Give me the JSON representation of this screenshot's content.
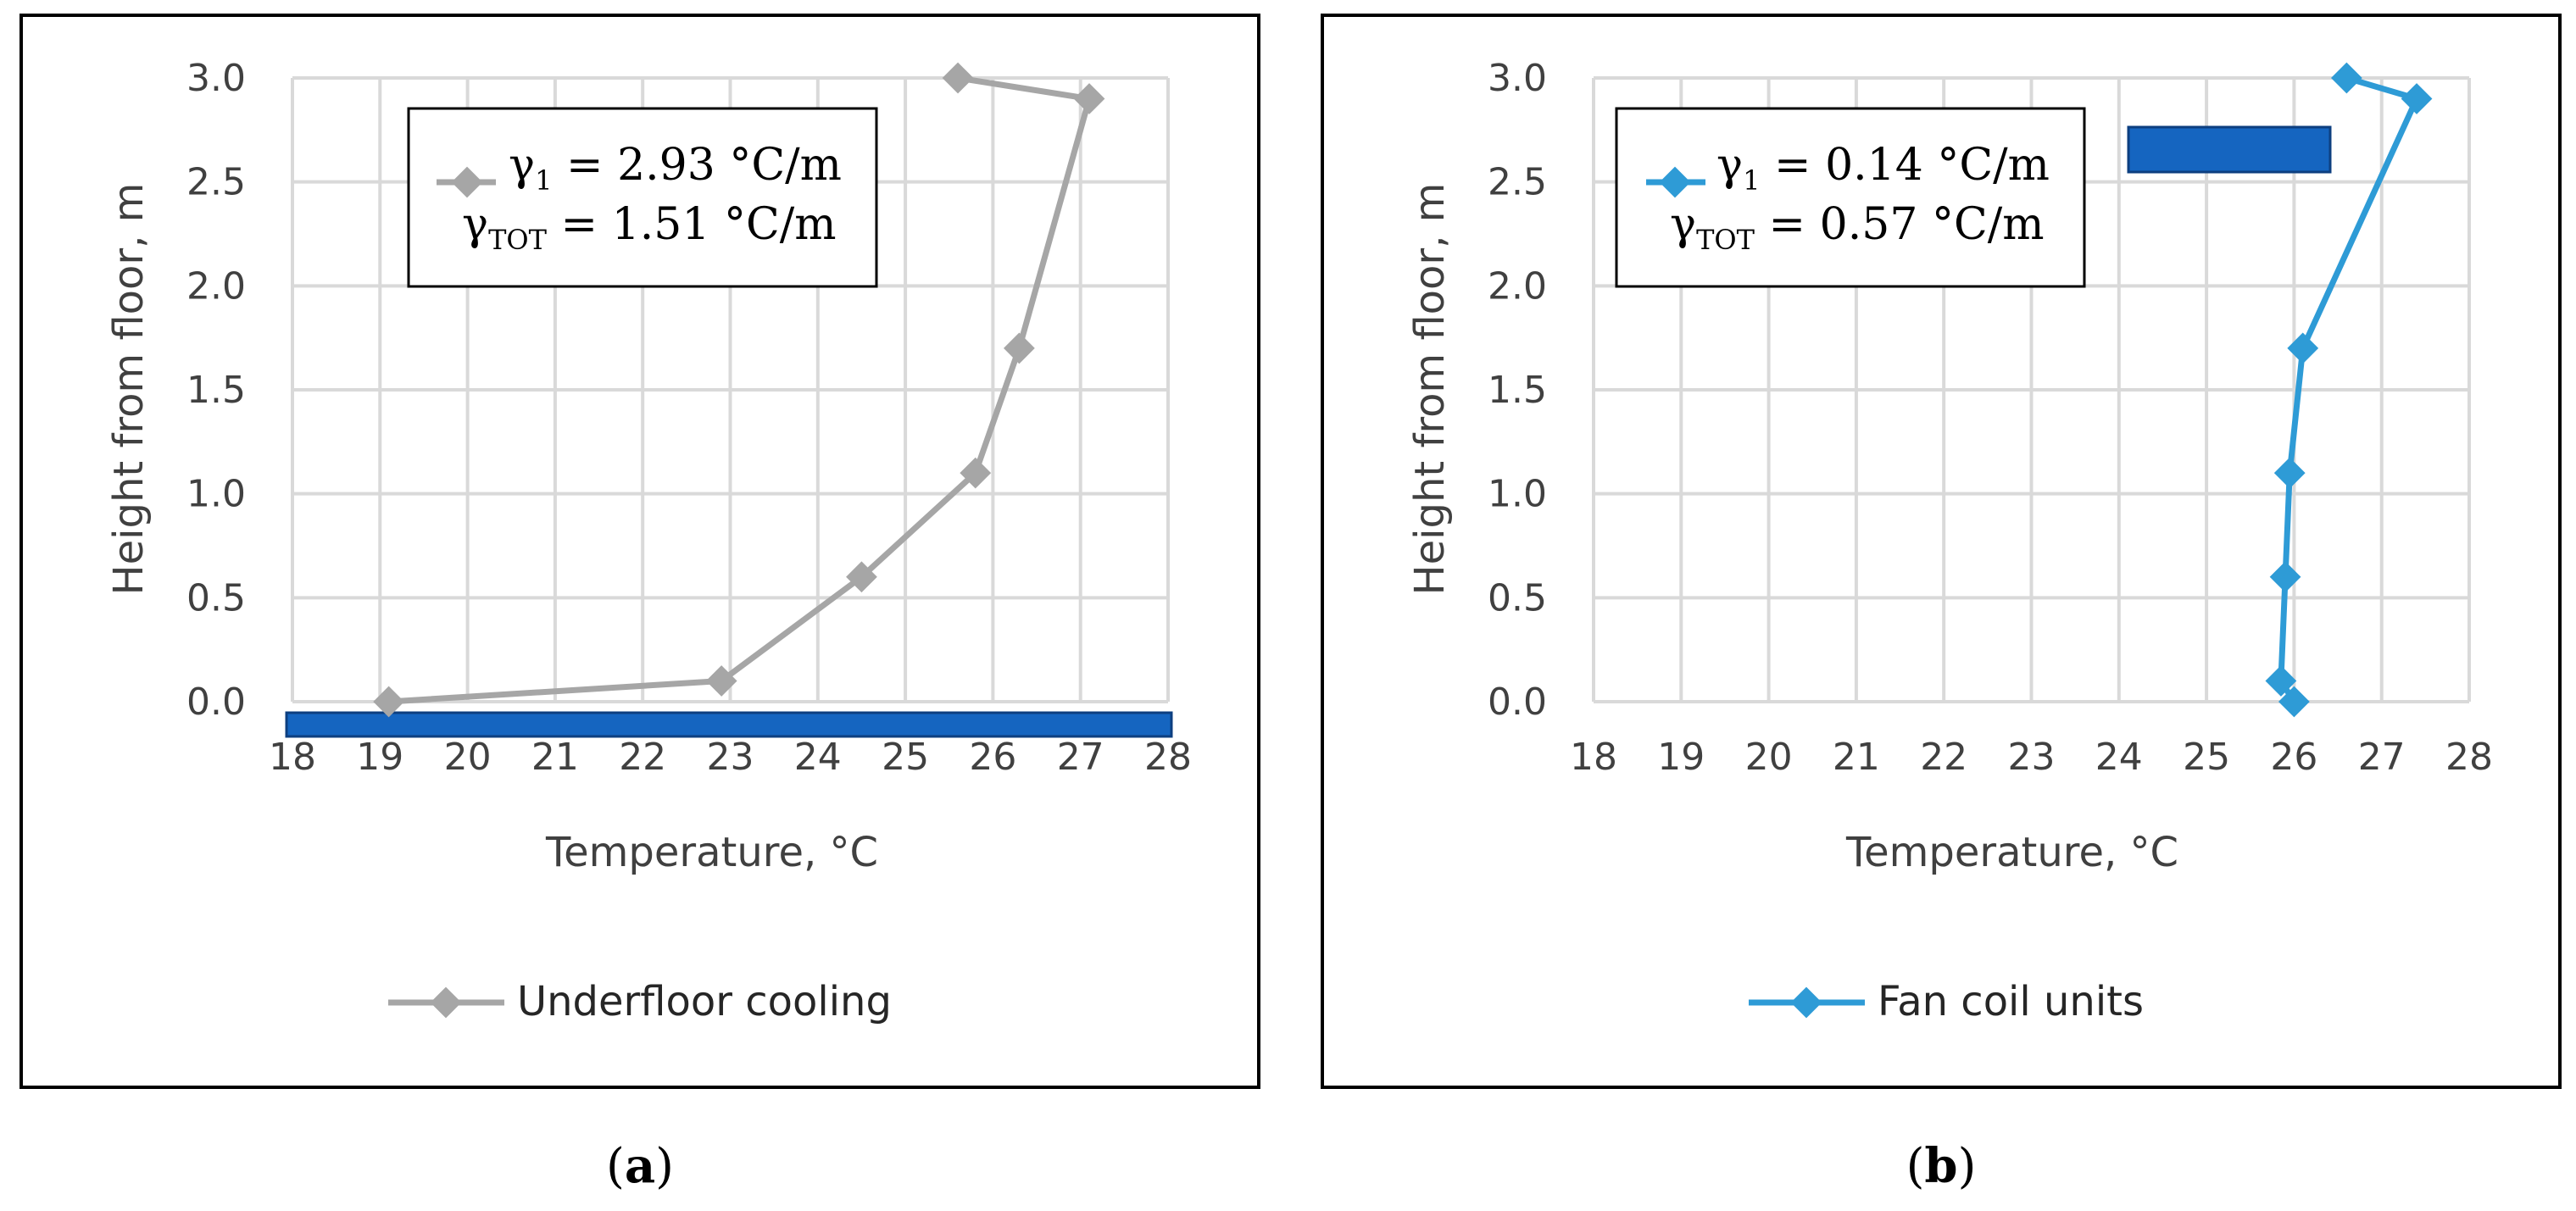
{
  "chart_data": [
    {
      "id": "a",
      "type": "line",
      "caption": "a",
      "xlabel": "Temperature, °C",
      "ylabel": "Height from floor, m",
      "xlim": [
        18,
        28
      ],
      "ylim": [
        0,
        3
      ],
      "xticks": [
        "18",
        "19",
        "20",
        "21",
        "22",
        "23",
        "24",
        "25",
        "26",
        "27",
        "28"
      ],
      "yticks": [
        "0.0",
        "0.5",
        "1.0",
        "1.5",
        "2.0",
        "2.5",
        "3.0"
      ],
      "grid": true,
      "legend_position": "bottom",
      "color": "#A6A6A6",
      "series": [
        {
          "name": "Underfloor cooling",
          "x": [
            19.1,
            22.9,
            24.5,
            25.8,
            26.3,
            27.1,
            25.6
          ],
          "y": [
            0.0,
            0.1,
            0.6,
            1.1,
            1.7,
            2.9,
            3.0
          ]
        }
      ],
      "annotation": {
        "line1_sym": "γ",
        "line1_sub": "1",
        "line1_val": " = 2.93 °C/m",
        "line2_sym": "γ",
        "line2_sub": "TOT",
        "line2_val": " = 1.51 °C/m"
      }
    },
    {
      "id": "b",
      "type": "line",
      "caption": "b",
      "xlabel": "Temperature, °C",
      "ylabel": "Height from floor, m",
      "xlim": [
        18,
        28
      ],
      "ylim": [
        0,
        3
      ],
      "xticks": [
        "18",
        "19",
        "20",
        "21",
        "22",
        "23",
        "24",
        "25",
        "26",
        "27",
        "28"
      ],
      "yticks": [
        "0.0",
        "0.5",
        "1.0",
        "1.5",
        "2.0",
        "2.5",
        "3.0"
      ],
      "grid": true,
      "legend_position": "bottom",
      "color": "#2E9BD6",
      "series": [
        {
          "name": "Fan coil units",
          "x": [
            26.0,
            25.85,
            25.9,
            25.95,
            26.1,
            27.4,
            26.6
          ],
          "y": [
            0.0,
            0.1,
            0.6,
            1.1,
            1.7,
            2.9,
            3.0
          ]
        }
      ],
      "annotation": {
        "line1_sym": "γ",
        "line1_sub": "1",
        "line1_val": " = 0.14 °C/m",
        "line2_sym": "γ",
        "line2_sub": "TOT",
        "line2_val": " = 0.57 °C/m"
      }
    }
  ],
  "colors": {
    "grid": "#D9D9D9",
    "frame": "#000000",
    "highlight": "#1565C0"
  }
}
